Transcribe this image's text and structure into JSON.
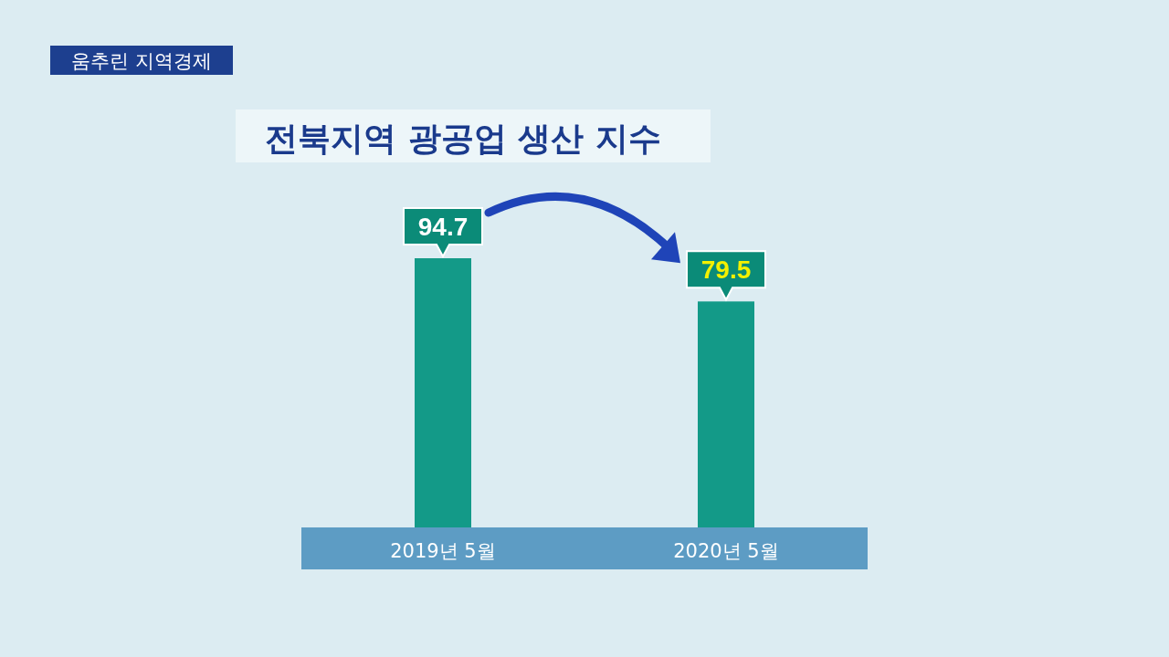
{
  "chart_data": {
    "type": "bar",
    "title": "전북지역 광공업 생산 지수",
    "subtitle": "움추린 지역경제",
    "categories": [
      "2019년 5월",
      "2020년 5월"
    ],
    "values": [
      94.7,
      79.5
    ],
    "color": "#139a88",
    "data_labels": true
  }
}
